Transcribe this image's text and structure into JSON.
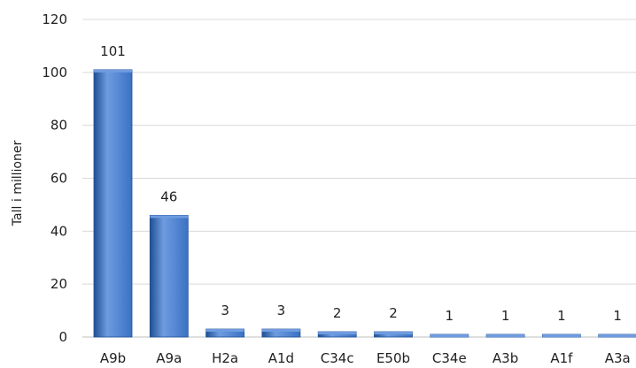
{
  "chart_data": {
    "type": "bar",
    "categories": [
      "A9b",
      "A9a",
      "H2a",
      "A1d",
      "C34c",
      "E50b",
      "C34e",
      "A3b",
      "A1f",
      "A3a"
    ],
    "values": [
      101,
      46,
      3,
      3,
      2,
      2,
      1,
      1,
      1,
      1
    ],
    "data_labels": [
      "101",
      "46",
      "3",
      "3",
      "2",
      "2",
      "1",
      "1",
      "1",
      "1"
    ],
    "ylabel": "Tall i millioner",
    "ylim": [
      0,
      120
    ],
    "yticks": [
      0,
      20,
      40,
      60,
      80,
      100,
      120
    ],
    "grid": true,
    "bar_color": "#3a72c4",
    "bar_highlight": "#6f9be0",
    "bar_shadow": "#1f4f94"
  }
}
